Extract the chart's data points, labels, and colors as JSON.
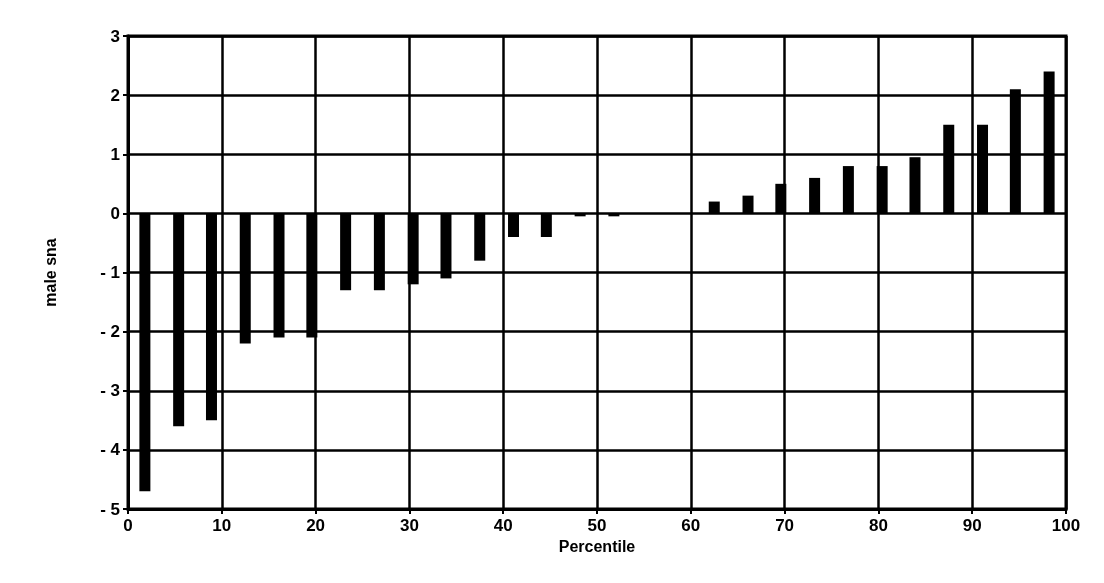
{
  "chart_data": {
    "type": "bar",
    "xlabel": "Percentile",
    "ylabel": "male sna",
    "x": [
      1.8,
      5.4,
      8.9,
      12.5,
      16.1,
      19.6,
      23.2,
      26.8,
      30.4,
      33.9,
      37.5,
      41.1,
      44.6,
      48.2,
      51.8,
      55.4,
      58.9,
      62.5,
      66.1,
      69.6,
      73.2,
      76.8,
      80.4,
      83.9,
      87.5,
      91.1,
      94.6,
      98.2
    ],
    "values": [
      -4.7,
      -3.6,
      -3.5,
      -2.2,
      -2.1,
      -2.1,
      -1.3,
      -1.3,
      -1.2,
      -1.1,
      -0.8,
      -0.4,
      -0.4,
      -0.05,
      -0.05,
      0,
      0,
      0.2,
      0.3,
      0.5,
      0.6,
      0.8,
      0.8,
      0.95,
      1.5,
      1.5,
      2.1,
      2.4
    ],
    "color": "#000000",
    "xlim": [
      0,
      100
    ],
    "xticks": [
      0,
      10,
      20,
      30,
      40,
      50,
      60,
      70,
      80,
      90,
      100
    ],
    "ylim": [
      -5,
      3
    ],
    "yticks": [
      {
        "value": -5,
        "label": "- 5"
      },
      {
        "value": -4,
        "label": "- 4"
      },
      {
        "value": -3,
        "label": "- 3"
      },
      {
        "value": -2,
        "label": "- 2"
      },
      {
        "value": -1,
        "label": "- 1"
      },
      0,
      1,
      2,
      3
    ],
    "grid": true
  }
}
